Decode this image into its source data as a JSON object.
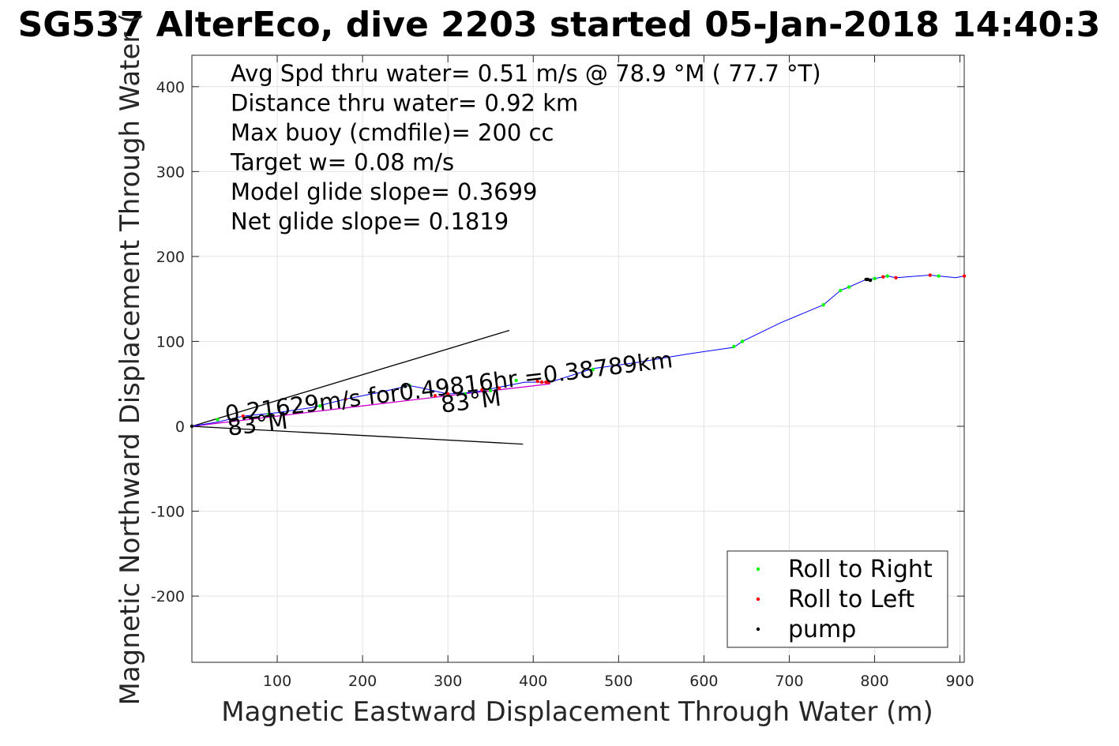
{
  "chart_data": {
    "type": "line",
    "title": "SG537 AlterEco, dive 2203 started 05-Jan-2018 14:40:3",
    "xlabel": "Magnetic Eastward Displacement Through Water (m)",
    "ylabel": "Magnetic Northward Displacement Through Water (",
    "xlim": [
      0,
      905
    ],
    "ylim": [
      -278,
      437
    ],
    "xticks": [
      100,
      200,
      300,
      400,
      500,
      600,
      700,
      800,
      900
    ],
    "yticks": [
      -200,
      -100,
      0,
      100,
      200,
      300,
      400
    ],
    "grid": true,
    "legend_position": "bottom-right",
    "info_lines": [
      "Avg Spd thru water=  0.51 m/s @  78.9 °M ( 77.7 °T)",
      "Distance thru water=  0.92 km",
      "Max buoy (cmdfile)= 200 cc",
      "Target w= 0.08 m/s",
      "Model glide slope= 0.3699",
      "Net glide slope= 0.1819"
    ],
    "track": {
      "color": "#0000ff",
      "x": [
        0,
        30,
        60,
        100,
        140,
        180,
        220,
        255,
        270,
        300,
        330,
        360,
        390,
        420,
        470,
        520,
        580,
        635,
        645,
        690,
        740,
        760,
        770,
        790,
        800,
        815,
        825,
        865,
        875,
        895,
        905
      ],
      "y": [
        0,
        5,
        12,
        16,
        22,
        32,
        40,
        48,
        45,
        38,
        40,
        46,
        52,
        52,
        68,
        75,
        85,
        93,
        100,
        122,
        143,
        160,
        164,
        173,
        174,
        177,
        175,
        178,
        177,
        175,
        177
      ]
    },
    "current_line": {
      "color": "#cc00cc",
      "x": [
        0,
        100,
        200,
        300,
        420
      ],
      "y": [
        0,
        12,
        24,
        36,
        50
      ]
    },
    "cone_lines": [
      {
        "x": [
          0,
          372
        ],
        "y": [
          0,
          113
        ]
      },
      {
        "x": [
          0,
          388
        ],
        "y": [
          0,
          -21
        ]
      }
    ],
    "annotations": [
      {
        "text": "0.21629m/s for0.49816hr =0.38789km",
        "x": 40,
        "y": 5,
        "angle": -7
      },
      {
        "text": "83°M",
        "x": 293,
        "y": 16,
        "angle": -7
      },
      {
        "text": "83°M",
        "x": 43,
        "y": -11,
        "angle": -7
      }
    ],
    "series": [
      {
        "name": "Roll to Right",
        "color": "#00ff00",
        "x": [
          30,
          90,
          150,
          255,
          320,
          350,
          380,
          470,
          635,
          645,
          740,
          760,
          770,
          800,
          815,
          875
        ],
        "y": [
          8,
          14,
          24,
          48,
          38,
          42,
          54,
          67,
          94,
          100,
          143,
          160,
          164,
          174,
          177,
          177
        ]
      },
      {
        "name": "Roll to Left",
        "color": "#ff0000",
        "x": [
          0,
          60,
          180,
          285,
          300,
          340,
          360,
          405,
          410,
          415,
          418,
          810,
          825,
          865,
          905
        ],
        "y": [
          0,
          12,
          32,
          36,
          38,
          43,
          45,
          53,
          52,
          52,
          52,
          176,
          175,
          178,
          177
        ]
      },
      {
        "name": "pump",
        "color": "#000000",
        "x": [
          0,
          790,
          792,
          795,
          250
        ],
        "y": [
          0,
          173,
          173,
          172,
          47
        ]
      }
    ]
  }
}
